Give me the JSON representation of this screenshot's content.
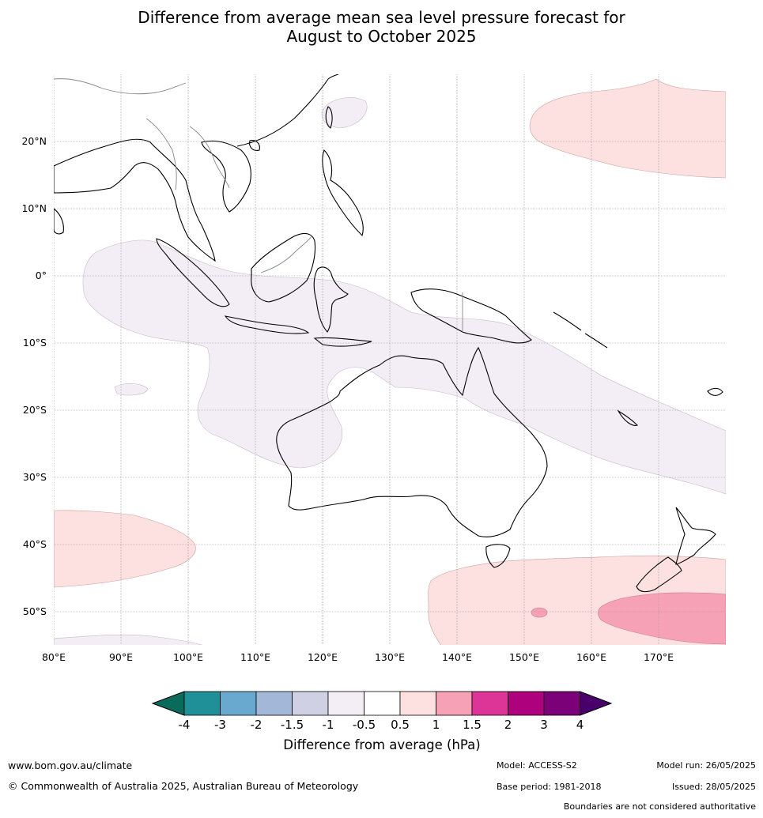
{
  "title_line1": "Difference from average mean sea level pressure forecast for",
  "title_line2": "August to October 2025",
  "lat_labels": [
    "20°N",
    "10°N",
    "0°",
    "10°S",
    "20°S",
    "30°S",
    "40°S",
    "50°S"
  ],
  "lon_labels": [
    "80°E",
    "90°E",
    "100°E",
    "110°E",
    "120°E",
    "130°E",
    "140°E",
    "150°E",
    "160°E",
    "170°E"
  ],
  "colorbar": {
    "title": "Difference from average (hPa)",
    "tick_labels": [
      "-4",
      "-3",
      "-2",
      "-1.5",
      "-1",
      "-0.5",
      "0.5",
      "1",
      "1.5",
      "2",
      "3",
      "4"
    ],
    "colors": [
      "#0b6b5a",
      "#1f9098",
      "#6aa9cf",
      "#a3b7d8",
      "#cfd0e4",
      "#f3eef5",
      "#ffffff",
      "#fde0e0",
      "#f7a1b7",
      "#dd3497",
      "#ae017e",
      "#7a0177",
      "#49006a"
    ]
  },
  "footer": {
    "website": "www.bom.gov.au/climate",
    "copyright": "© Commonwealth of Australia 2025, Australian Bureau of Meteorology",
    "model": "Model: ACCESS-S2",
    "base_period": "Base period: 1981-2018",
    "model_run": "Model run: 26/05/2025",
    "issued": "Issued: 28/05/2025",
    "disclaimer": "Boundaries are not considered authoritative"
  }
}
